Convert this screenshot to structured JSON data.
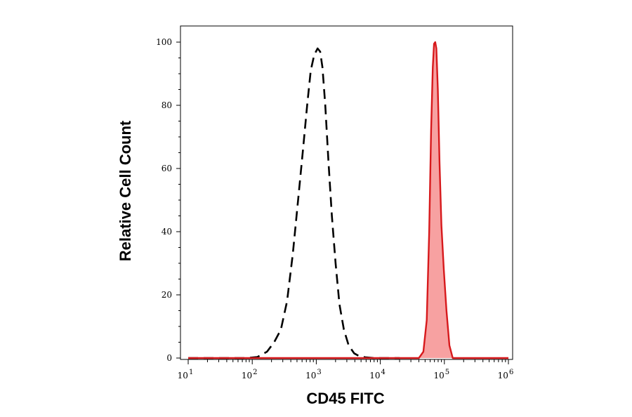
{
  "chart_data": {
    "type": "area",
    "xlabel": "CD45 FITC",
    "ylabel": "Relative Cell Count",
    "x_scale": "log",
    "xlim": [
      10,
      1000000
    ],
    "ylim": [
      0,
      105
    ],
    "x_ticks": [
      {
        "value": 10,
        "base": "10",
        "exp": "1"
      },
      {
        "value": 100,
        "base": "10",
        "exp": "2"
      },
      {
        "value": 1000,
        "base": "10",
        "exp": "3"
      },
      {
        "value": 10000,
        "base": "10",
        "exp": "4"
      },
      {
        "value": 100000,
        "base": "10",
        "exp": "5"
      },
      {
        "value": 1000000,
        "base": "10",
        "exp": "6"
      }
    ],
    "y_ticks": [
      0,
      20,
      40,
      60,
      80,
      100
    ],
    "grid": false,
    "series": [
      {
        "style": "dashed",
        "color": "#000000",
        "fill": "none",
        "x": [
          10,
          40,
          80,
          120,
          170,
          220,
          280,
          350,
          430,
          520,
          620,
          720,
          820,
          930,
          1050,
          1150,
          1250,
          1380,
          1550,
          1750,
          2000,
          2300,
          2700,
          3200,
          3900,
          4800,
          6000,
          8000,
          12000,
          20000
        ],
        "y": [
          0,
          0,
          0,
          0.3,
          2,
          5,
          9,
          18,
          33,
          50,
          66,
          80,
          91,
          96,
          98,
          97,
          92,
          80,
          62,
          45,
          30,
          17,
          9,
          4,
          1.5,
          0.5,
          0.2,
          0,
          0,
          0
        ]
      },
      {
        "style": "solid",
        "color": "#d7191c",
        "fill": "#f7a1a1",
        "x": [
          10,
          30000,
          40000,
          47000,
          53000,
          58000,
          62000,
          66000,
          69000,
          72000,
          75000,
          79000,
          84000,
          90000,
          98000,
          108000,
          120000,
          135000,
          1000000
        ],
        "y": [
          0,
          0,
          0,
          2,
          12,
          40,
          72,
          92,
          99.5,
          100,
          98,
          85,
          62,
          42,
          28,
          15,
          4,
          0,
          0
        ]
      }
    ]
  }
}
